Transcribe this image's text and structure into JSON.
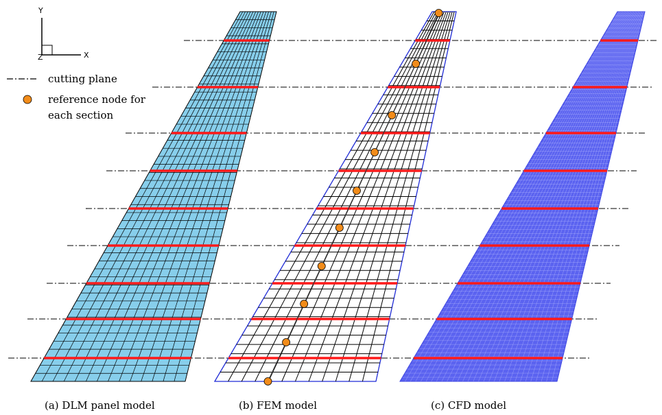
{
  "axes": {
    "y_label": "Y",
    "x_label": "X",
    "z_label": "Z"
  },
  "legend": {
    "cutting_plane_label": "cutting plane",
    "reference_node_label_line1": "reference node for",
    "reference_node_label_line2": "each section"
  },
  "captions": {
    "dlm": "(a) DLM panel model",
    "fem": "(b) FEM model",
    "cfd": "(c) CFD model"
  },
  "colors": {
    "dlm_fill": "#87ceeb",
    "fem_outline": "#1f2bd6",
    "cfd_fill": "#5b63f0",
    "cutting_section": "#ff1a1a",
    "reference_node": "#f28c1a"
  },
  "reference_node_count": 10,
  "cutting_plane_count": 9
}
